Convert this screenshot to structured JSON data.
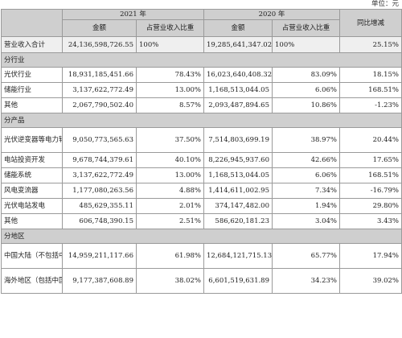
{
  "unit_note": "单位：元",
  "header": {
    "year2021": "2021 年",
    "year2020": "2020 年",
    "yoy": "同比增减",
    "amount": "金额",
    "ratio": "占营业收入比重"
  },
  "total": {
    "label": "营业收入合计",
    "a2021": "24,136,598,726.55",
    "r2021": "100%",
    "a2020": "19,285,641,347.02",
    "r2020": "100%",
    "yoy": "25.15%"
  },
  "sections": {
    "industry": "分行业",
    "product": "分产品",
    "region": "分地区"
  },
  "rows": [
    {
      "label": "光伏行业",
      "a2021": "18,931,185,451.66",
      "r2021": "78.43%",
      "a2020": "16,023,640,408.32",
      "r2020": "83.09%",
      "yoy": "18.15%"
    },
    {
      "label": "储能行业",
      "a2021": "3,137,622,772.49",
      "r2021": "13.00%",
      "a2020": "1,168,513,044.05",
      "r2020": "6.06%",
      "yoy": "168.51%"
    },
    {
      "label": "其他",
      "a2021": "2,067,790,502.40",
      "r2021": "8.57%",
      "a2020": "2,093,487,894.65",
      "r2020": "10.86%",
      "yoy": "-1.23%"
    },
    {
      "label": "光伏逆变器等电力转换设备",
      "a2021": "9,050,773,565.63",
      "r2021": "37.50%",
      "a2020": "7,514,803,699.19",
      "r2020": "38.97%",
      "yoy": "20.44%"
    },
    {
      "label": "电站投资开发",
      "a2021": "9,678,744,379.61",
      "r2021": "40.10%",
      "a2020": "8,226,945,937.60",
      "r2020": "42.66%",
      "yoy": "17.65%"
    },
    {
      "label": "储能系统",
      "a2021": "3,137,622,772.49",
      "r2021": "13.00%",
      "a2020": "1,168,513,044.05",
      "r2020": "6.06%",
      "yoy": "168.51%"
    },
    {
      "label": "风电变流器",
      "a2021": "1,177,080,263.56",
      "r2021": "4.88%",
      "a2020": "1,414,611,002.95",
      "r2020": "7.34%",
      "yoy": "-16.79%"
    },
    {
      "label": "光伏电站发电",
      "a2021": "485,629,355.11",
      "r2021": "2.01%",
      "a2020": "374,147,482.00",
      "r2020": "1.94%",
      "yoy": "29.80%"
    },
    {
      "label": "其他",
      "a2021": "606,748,390.15",
      "r2021": "2.51%",
      "a2020": "586,620,181.23",
      "r2020": "3.04%",
      "yoy": "3.43%"
    },
    {
      "label": "中国大陆（不包括中国港澳台）",
      "a2021": "14,959,211,117.66",
      "r2021": "61.98%",
      "a2020": "12,684,121,715.13",
      "r2020": "65.77%",
      "yoy": "17.94%"
    },
    {
      "label": "海外地区（包括中国港澳台）",
      "a2021": "9,177,387,608.89",
      "r2021": "38.02%",
      "a2020": "6,601,519,631.89",
      "r2020": "34.23%",
      "yoy": "39.02%"
    }
  ]
}
